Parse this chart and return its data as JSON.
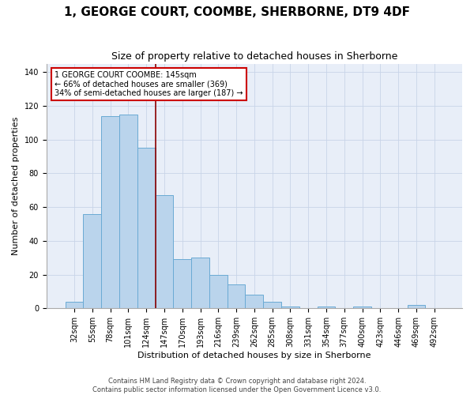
{
  "title": "1, GEORGE COURT, COOMBE, SHERBORNE, DT9 4DF",
  "subtitle": "Size of property relative to detached houses in Sherborne",
  "xlabel": "Distribution of detached houses by size in Sherborne",
  "ylabel": "Number of detached properties",
  "categories": [
    "32sqm",
    "55sqm",
    "78sqm",
    "101sqm",
    "124sqm",
    "147sqm",
    "170sqm",
    "193sqm",
    "216sqm",
    "239sqm",
    "262sqm",
    "285sqm",
    "308sqm",
    "331sqm",
    "354sqm",
    "377sqm",
    "400sqm",
    "423sqm",
    "446sqm",
    "469sqm",
    "492sqm"
  ],
  "values": [
    4,
    56,
    114,
    115,
    95,
    67,
    29,
    30,
    20,
    14,
    8,
    4,
    1,
    0,
    1,
    0,
    1,
    0,
    0,
    2,
    0
  ],
  "bar_color": "#bad4ec",
  "bar_edge_color": "#6aaad4",
  "vline_color": "#8b0000",
  "annotation_text": "1 GEORGE COURT COOMBE: 145sqm\n← 66% of detached houses are smaller (369)\n34% of semi-detached houses are larger (187) →",
  "annotation_box_color": "#ffffff",
  "annotation_box_edge_color": "#cc0000",
  "ylim_max": 145,
  "yticks": [
    0,
    20,
    40,
    60,
    80,
    100,
    120,
    140
  ],
  "grid_color": "#c8d4e8",
  "background_color": "#e8eef8",
  "footer_line1": "Contains HM Land Registry data © Crown copyright and database right 2024.",
  "footer_line2": "Contains public sector information licensed under the Open Government Licence v3.0.",
  "title_fontsize": 11,
  "subtitle_fontsize": 9,
  "tick_fontsize": 7,
  "ylabel_fontsize": 8,
  "xlabel_fontsize": 8,
  "annotation_fontsize": 7,
  "footer_fontsize": 6
}
